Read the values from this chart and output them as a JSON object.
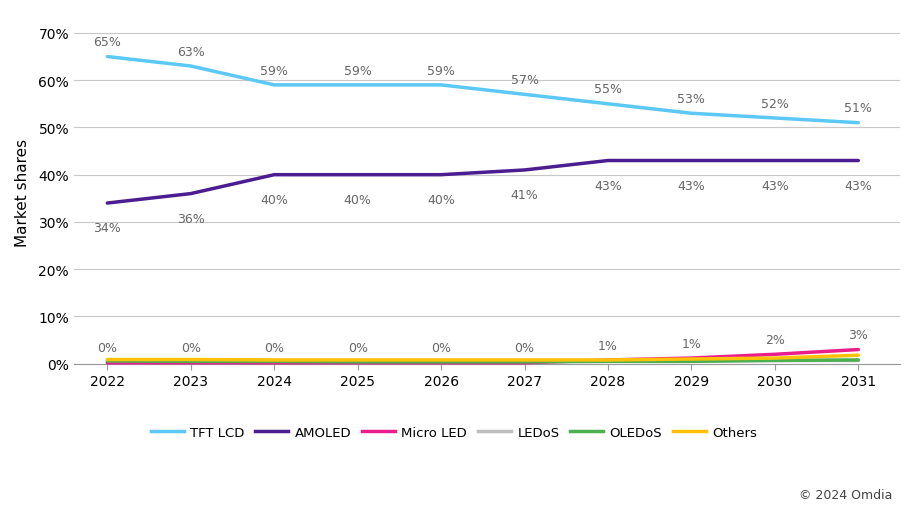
{
  "years": [
    2022,
    2023,
    2024,
    2025,
    2026,
    2027,
    2028,
    2029,
    2030,
    2031
  ],
  "series": {
    "TFT LCD": {
      "values": [
        65,
        63,
        59,
        59,
        59,
        57,
        55,
        53,
        52,
        51
      ],
      "color": "#5BC8F5",
      "linewidth": 2.5
    },
    "AMOLED": {
      "values": [
        34,
        36,
        40,
        40,
        40,
        41,
        43,
        43,
        43,
        43
      ],
      "color": "#4B1D91",
      "linewidth": 2.5
    },
    "Micro LED": {
      "values": [
        0.2,
        0.2,
        0.2,
        0.2,
        0.2,
        0.2,
        0.8,
        1.2,
        2.0,
        3.0
      ],
      "color": "#E91E8C",
      "linewidth": 2.5
    },
    "LEDoS": {
      "values": [
        0.8,
        0.8,
        0.8,
        0.8,
        0.8,
        0.8,
        0.8,
        0.8,
        0.8,
        0.8
      ],
      "color": "#BDBDBD",
      "linewidth": 2.5
    },
    "OLEDoS": {
      "values": [
        0.6,
        0.5,
        0.5,
        0.4,
        0.4,
        0.4,
        0.5,
        0.5,
        0.7,
        0.8
      ],
      "color": "#4CAF50",
      "linewidth": 2.5
    },
    "Others": {
      "values": [
        0.9,
        0.9,
        0.8,
        0.8,
        0.8,
        0.8,
        0.8,
        1.0,
        1.2,
        1.8
      ],
      "color": "#FFC107",
      "linewidth": 2.5
    }
  },
  "tft_labels": [
    65,
    63,
    59,
    59,
    59,
    57,
    55,
    53,
    52,
    51
  ],
  "amoled_labels": [
    34,
    36,
    40,
    40,
    40,
    41,
    43,
    43,
    43,
    43
  ],
  "micro_labels": [
    0,
    0,
    0,
    0,
    0,
    0,
    1,
    1,
    2,
    3
  ],
  "ylabel": "Market shares",
  "ylim": [
    -1.5,
    74
  ],
  "yticks": [
    0,
    10,
    20,
    30,
    40,
    50,
    60,
    70
  ],
  "ytick_labels": [
    "0%",
    "10%",
    "20%",
    "30%",
    "40%",
    "50%",
    "60%",
    "70%"
  ],
  "copyright": "© 2024 Omdia",
  "bg_color": "#FFFFFF",
  "grid_color": "#C8C8C8",
  "annotation_color": "#666666",
  "annotation_fontsize": 9.0,
  "tick_fontsize": 10,
  "ylabel_fontsize": 11
}
